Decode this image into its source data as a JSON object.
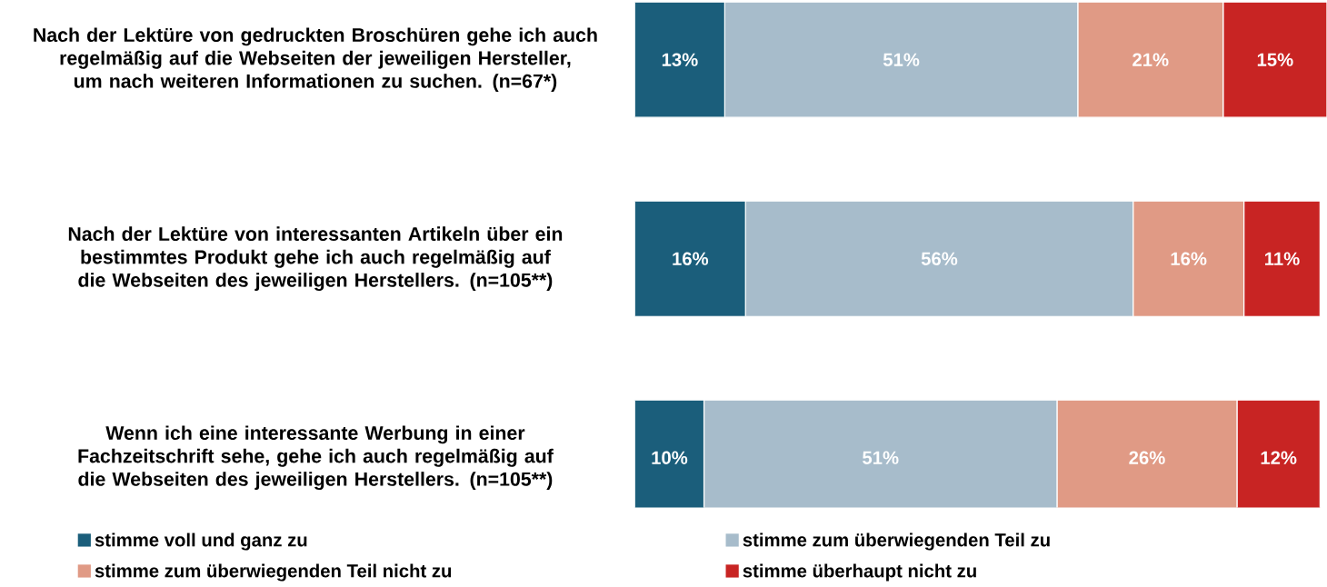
{
  "chart_data": {
    "type": "bar",
    "orientation": "horizontal",
    "stacked": true,
    "categories": [
      "Nach der Lektüre von gedruckten Broschüren gehe ich auch regelmäßig auf die Webseiten der jeweiligen Hersteller, um nach weiteren Informationen zu suchen. (n=67*)",
      "Nach der Lektüre von interessanten Artikeln über ein bestimmtes Produkt gehe ich auch regelmäßig auf die Webseiten des jeweiligen Herstellers. (n=105**)",
      "Wenn ich eine interessante Werbung in einer Fachzeitschrift sehe, gehe ich auch regelmäßig auf die Webseiten des jeweiligen Herstellers. (n=105**)"
    ],
    "series": [
      {
        "name": "stimme voll und ganz zu",
        "color": "#1b5e7b",
        "values": [
          13,
          16,
          10
        ],
        "value_labels": [
          "13%",
          "16%",
          "10%"
        ]
      },
      {
        "name": "stimme zum überwiegenden Teil zu",
        "color": "#a7bccb",
        "values": [
          51,
          56,
          51
        ],
        "value_labels": [
          "51%",
          "56%",
          "51%"
        ]
      },
      {
        "name": "stimme zum überwiegenden Teil nicht zu",
        "color": "#e09a85",
        "values": [
          21,
          16,
          26
        ],
        "value_labels": [
          "21%",
          "16%",
          "26%"
        ]
      },
      {
        "name": "stimme überhaupt nicht zu",
        "color": "#c82423",
        "values": [
          15,
          11,
          12
        ],
        "value_labels": [
          "15%",
          "11%",
          "12%"
        ]
      }
    ],
    "tick_labels": "y",
    "legend": "bottom"
  }
}
